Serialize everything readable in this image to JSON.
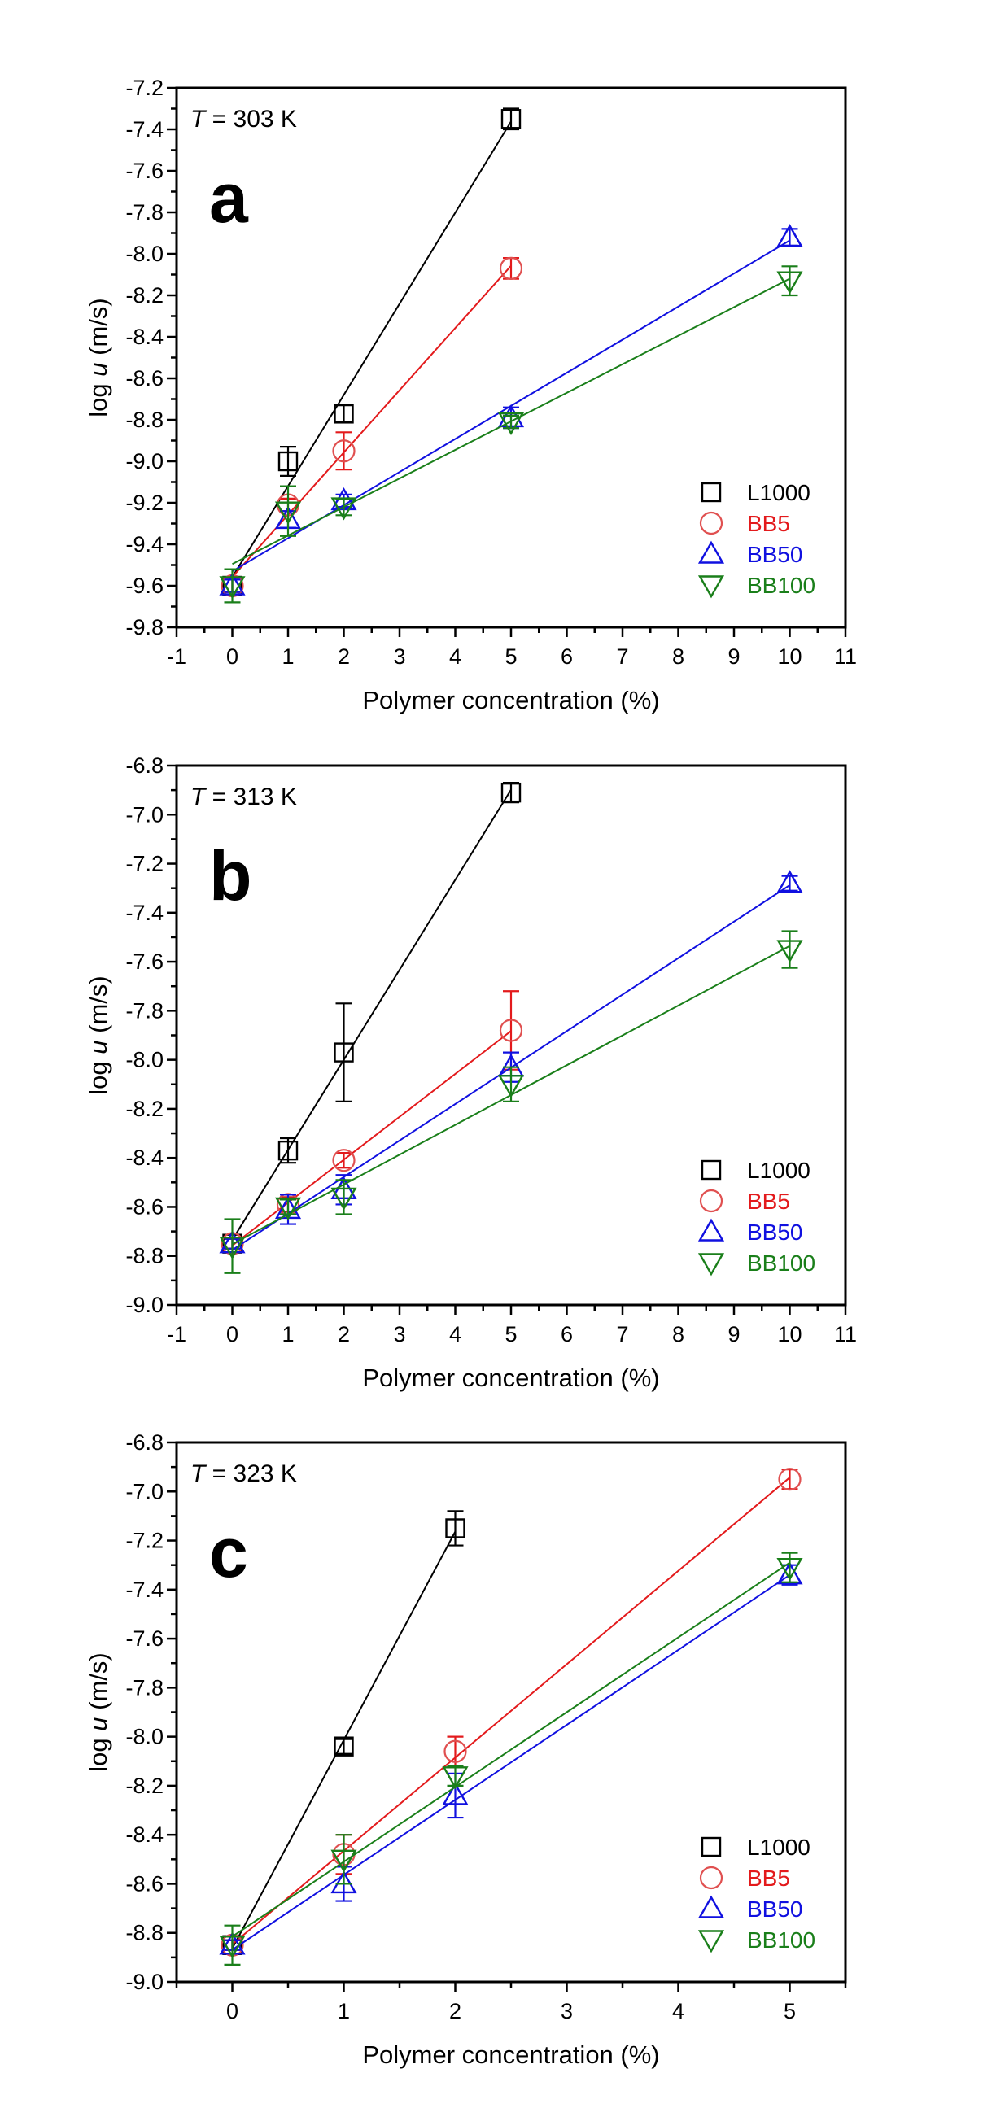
{
  "colors": {
    "L1000": "#000000",
    "BB5": "#e31a1c",
    "BB50": "#1010e0",
    "BB100": "#1a7f1a",
    "BB5_marker": "#e05050"
  },
  "chart_data": [
    {
      "type": "scatter",
      "panel_letter": "a",
      "annotation_prefix": "T",
      "annotation_rest": " = 303 K",
      "xlabel": "Polymer concentration (%)",
      "ylabel_prefix": "log ",
      "ylabel_var": "u",
      "ylabel_suffix": " (m/s)",
      "xlim": [
        -1,
        11
      ],
      "ylim": [
        -9.8,
        -7.2
      ],
      "xticks": [
        -1,
        0,
        1,
        2,
        3,
        4,
        5,
        6,
        7,
        8,
        9,
        10,
        11
      ],
      "xtick_labels": [
        "-1",
        "0",
        "1",
        "2",
        "3",
        "4",
        "5",
        "6",
        "7",
        "8",
        "9",
        "10",
        "11"
      ],
      "yticks": [
        -9.8,
        -9.6,
        -9.4,
        -9.2,
        -9.0,
        -8.8,
        -8.6,
        -8.4,
        -8.2,
        -8.0,
        -7.8,
        -7.6,
        -7.4,
        -7.2
      ],
      "ytick_labels": [
        "-9.8",
        "-9.6",
        "-9.4",
        "-9.2",
        "-9.0",
        "-8.8",
        "-8.6",
        "-8.4",
        "-8.2",
        "-8.0",
        "-7.8",
        "-7.6",
        "-7.4",
        "-7.2"
      ],
      "legend_position": "lower-right",
      "grid": false,
      "series": [
        {
          "name": "L1000",
          "marker": "square",
          "x": [
            0,
            1,
            2,
            5
          ],
          "y": [
            -9.6,
            -9.0,
            -8.77,
            -7.35
          ],
          "err": [
            0.03,
            0.07,
            0.04,
            0.05
          ]
        },
        {
          "name": "BB5",
          "marker": "circle",
          "x": [
            0,
            1,
            2,
            5
          ],
          "y": [
            -9.6,
            -9.21,
            -8.95,
            -8.07
          ],
          "err": [
            0.03,
            0.03,
            0.09,
            0.05
          ]
        },
        {
          "name": "BB50",
          "marker": "triangle-up",
          "x": [
            0,
            1,
            2,
            5,
            10
          ],
          "y": [
            -9.6,
            -9.28,
            -9.19,
            -8.79,
            -7.92
          ],
          "err": [
            0.03,
            0.04,
            0.03,
            0.05,
            0.04
          ]
        },
        {
          "name": "BB100",
          "marker": "triangle-down",
          "x": [
            0,
            1,
            2,
            5,
            10
          ],
          "y": [
            -9.6,
            -9.24,
            -9.22,
            -8.81,
            -8.13
          ],
          "err": [
            0.08,
            0.12,
            0.04,
            0.03,
            0.07
          ]
        }
      ]
    },
    {
      "type": "scatter",
      "panel_letter": "b",
      "annotation_prefix": "T",
      "annotation_rest": " = 313 K",
      "xlabel": "Polymer concentration (%)",
      "ylabel_prefix": "log ",
      "ylabel_var": "u",
      "ylabel_suffix": " (m/s)",
      "xlim": [
        -1,
        11
      ],
      "ylim": [
        -9.0,
        -6.8
      ],
      "xticks": [
        -1,
        0,
        1,
        2,
        3,
        4,
        5,
        6,
        7,
        8,
        9,
        10,
        11
      ],
      "xtick_labels": [
        "-1",
        "0",
        "1",
        "2",
        "3",
        "4",
        "5",
        "6",
        "7",
        "8",
        "9",
        "10",
        "11"
      ],
      "yticks": [
        -9.0,
        -8.8,
        -8.6,
        -8.4,
        -8.2,
        -8.0,
        -7.8,
        -7.6,
        -7.4,
        -7.2,
        -7.0,
        -6.8
      ],
      "ytick_labels": [
        "-9.0",
        "-8.8",
        "-8.6",
        "-8.4",
        "-8.2",
        "-8.0",
        "-7.8",
        "-7.6",
        "-7.4",
        "-7.2",
        "-7.0",
        "-6.8"
      ],
      "legend_position": "lower-right",
      "grid": false,
      "series": [
        {
          "name": "L1000",
          "marker": "square",
          "x": [
            0,
            1,
            2,
            5
          ],
          "y": [
            -8.75,
            -8.37,
            -7.97,
            -6.91
          ],
          "err": [
            0.02,
            0.05,
            0.2,
            0.04
          ]
        },
        {
          "name": "BB5",
          "marker": "circle",
          "x": [
            0,
            1,
            2,
            5
          ],
          "y": [
            -8.75,
            -8.59,
            -8.41,
            -7.88
          ],
          "err": [
            0.02,
            0.03,
            0.03,
            0.16
          ]
        },
        {
          "name": "BB50",
          "marker": "triangle-up",
          "x": [
            0,
            1,
            2,
            5,
            10
          ],
          "y": [
            -8.75,
            -8.61,
            -8.53,
            -8.03,
            -7.28
          ],
          "err": [
            0.02,
            0.06,
            0.06,
            0.06,
            0.03
          ]
        },
        {
          "name": "BB100",
          "marker": "triangle-down",
          "x": [
            0,
            1,
            2,
            5,
            10
          ],
          "y": [
            -8.76,
            -8.6,
            -8.56,
            -8.1,
            -7.55
          ],
          "err": [
            0.11,
            0.03,
            0.07,
            0.07,
            0.075
          ]
        }
      ]
    },
    {
      "type": "scatter",
      "panel_letter": "c",
      "annotation_prefix": "T",
      "annotation_rest": " = 323 K",
      "xlabel": "Polymer concentration (%)",
      "ylabel_prefix": "log ",
      "ylabel_var": "u",
      "ylabel_suffix": " (m/s)",
      "xlim": [
        -0.5,
        5.5
      ],
      "ylim": [
        -9.0,
        -6.8
      ],
      "xticks": [
        0,
        1,
        2,
        3,
        4,
        5
      ],
      "xtick_labels": [
        "0",
        "1",
        "2",
        "3",
        "4",
        "5"
      ],
      "yticks": [
        -9.0,
        -8.8,
        -8.6,
        -8.4,
        -8.2,
        -8.0,
        -7.8,
        -7.6,
        -7.4,
        -7.2,
        -7.0,
        -6.8
      ],
      "ytick_labels": [
        "-9.0",
        "-8.8",
        "-8.6",
        "-8.4",
        "-8.2",
        "-8.0",
        "-7.8",
        "-7.6",
        "-7.4",
        "-7.2",
        "-7.0",
        "-6.8"
      ],
      "legend_position": "lower-right",
      "grid": false,
      "series": [
        {
          "name": "L1000",
          "marker": "square",
          "x": [
            0,
            1,
            2
          ],
          "y": [
            -8.85,
            -8.04,
            -7.15
          ],
          "err": [
            0.02,
            0.03,
            0.07
          ]
        },
        {
          "name": "BB5",
          "marker": "circle",
          "x": [
            0,
            1,
            2,
            5
          ],
          "y": [
            -8.85,
            -8.48,
            -8.06,
            -6.95
          ],
          "err": [
            0.02,
            0.08,
            0.06,
            0.04
          ]
        },
        {
          "name": "BB50",
          "marker": "triangle-up",
          "x": [
            0,
            1,
            2,
            5
          ],
          "y": [
            -8.85,
            -8.6,
            -8.24,
            -7.34
          ],
          "err": [
            0.02,
            0.07,
            0.09,
            0.04
          ]
        },
        {
          "name": "BB100",
          "marker": "triangle-down",
          "x": [
            0,
            1,
            2,
            5
          ],
          "y": [
            -8.85,
            -8.5,
            -8.16,
            -7.31
          ],
          "err": [
            0.08,
            0.1,
            0.04,
            0.06
          ]
        }
      ]
    }
  ]
}
